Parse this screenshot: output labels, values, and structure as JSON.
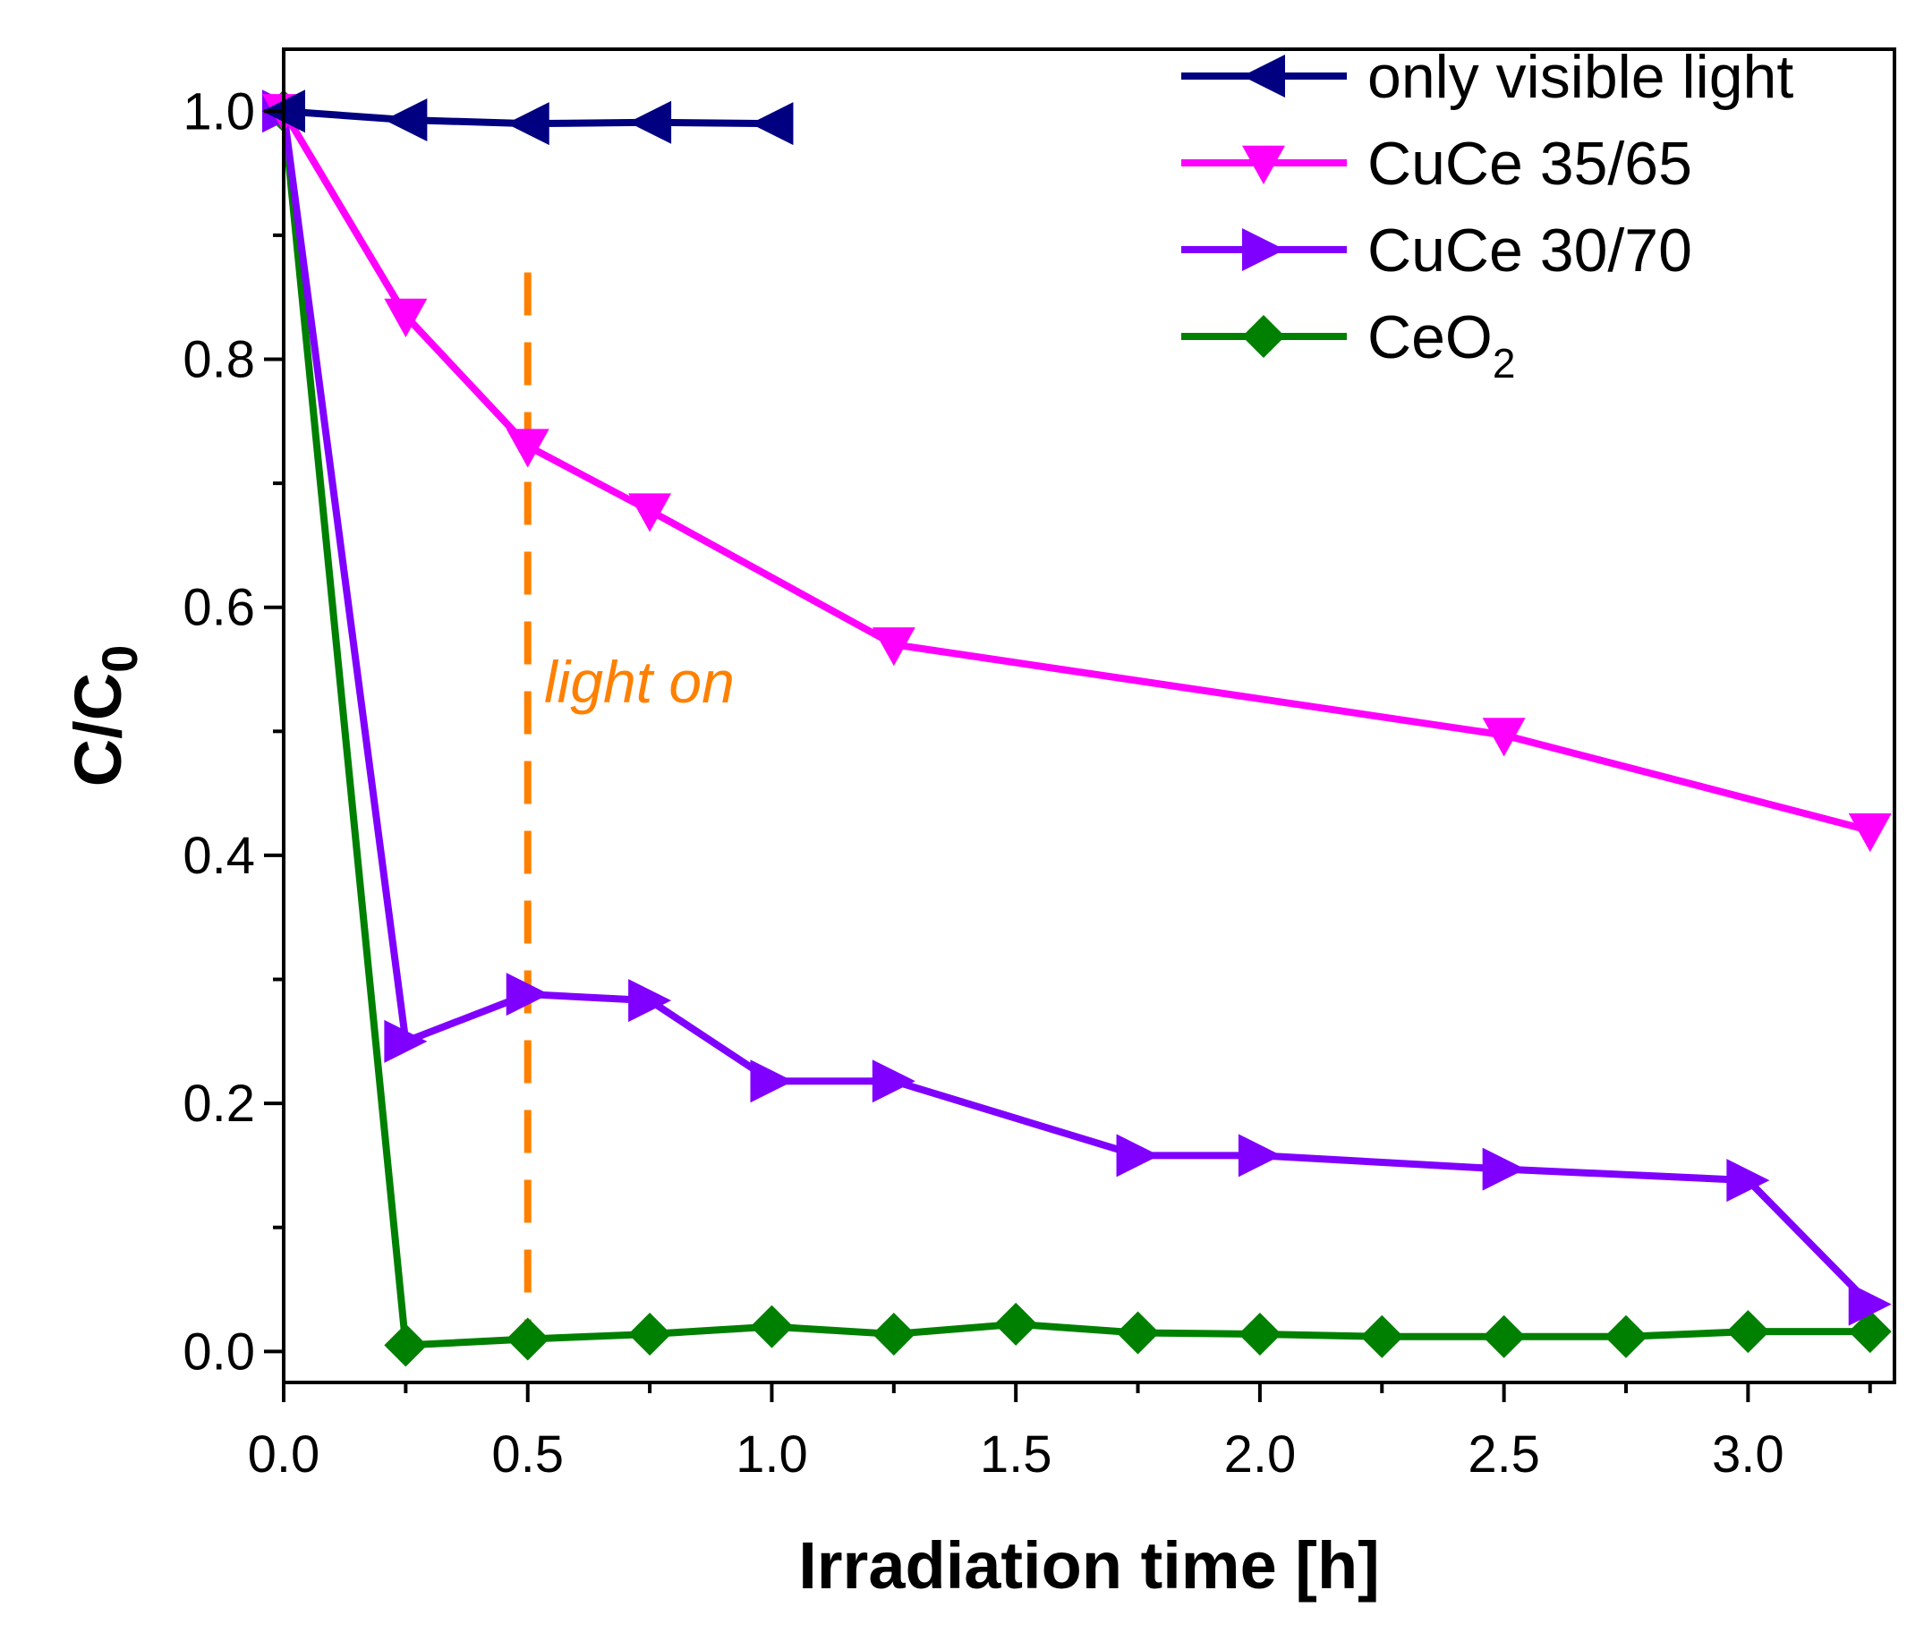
{
  "chart_data": {
    "type": "line",
    "title": "",
    "xlabel": "Irradiation time [h]",
    "ylabel": "C/C",
    "ylabel_subscript": "0",
    "xlim": [
      0,
      3.3
    ],
    "ylim": [
      -0.025,
      1.05
    ],
    "xticks": [
      "0.0",
      "0.5",
      "1.0",
      "1.5",
      "2.0",
      "2.5",
      "3.0"
    ],
    "yticks": [
      "0.0",
      "0.2",
      "0.4",
      "0.6",
      "0.8",
      "1.0"
    ],
    "grid": false,
    "legend_position": "top-right",
    "annotation": {
      "text": "light on",
      "x": 0.5,
      "color": "#ff8000"
    },
    "series": [
      {
        "name": "only visible light",
        "name_sub": "",
        "color": "#000080",
        "marker": "triangle-left",
        "x": [
          0,
          0.25,
          0.5,
          0.75,
          1.0
        ],
        "y": [
          1.0,
          0.993,
          0.99,
          0.991,
          0.99
        ]
      },
      {
        "name": "CuCe 35/65",
        "name_sub": "",
        "color": "#ff00ff",
        "marker": "triangle-down",
        "x": [
          0,
          0.25,
          0.5,
          0.75,
          1.25,
          2.5,
          3.25
        ],
        "y": [
          1.0,
          0.835,
          0.73,
          0.678,
          0.57,
          0.497,
          0.42
        ]
      },
      {
        "name": "CuCe 30/70",
        "name_sub": "",
        "color": "#8000ff",
        "marker": "triangle-right",
        "x": [
          0,
          0.25,
          0.5,
          0.75,
          1.0,
          1.25,
          1.75,
          2.0,
          2.5,
          3.0,
          3.25
        ],
        "y": [
          1.0,
          0.25,
          0.288,
          0.283,
          0.218,
          0.218,
          0.158,
          0.158,
          0.147,
          0.138,
          0.038
        ]
      },
      {
        "name": "CeO",
        "name_sub": "2",
        "color": "#008000",
        "marker": "diamond",
        "x": [
          0,
          0.25,
          0.5,
          0.75,
          1.0,
          1.25,
          1.5,
          1.75,
          2.0,
          2.25,
          2.5,
          2.75,
          3.0,
          3.25
        ],
        "y": [
          1.0,
          0.005,
          0.01,
          0.014,
          0.02,
          0.014,
          0.022,
          0.015,
          0.014,
          0.012,
          0.012,
          0.012,
          0.016,
          0.016
        ]
      }
    ]
  }
}
